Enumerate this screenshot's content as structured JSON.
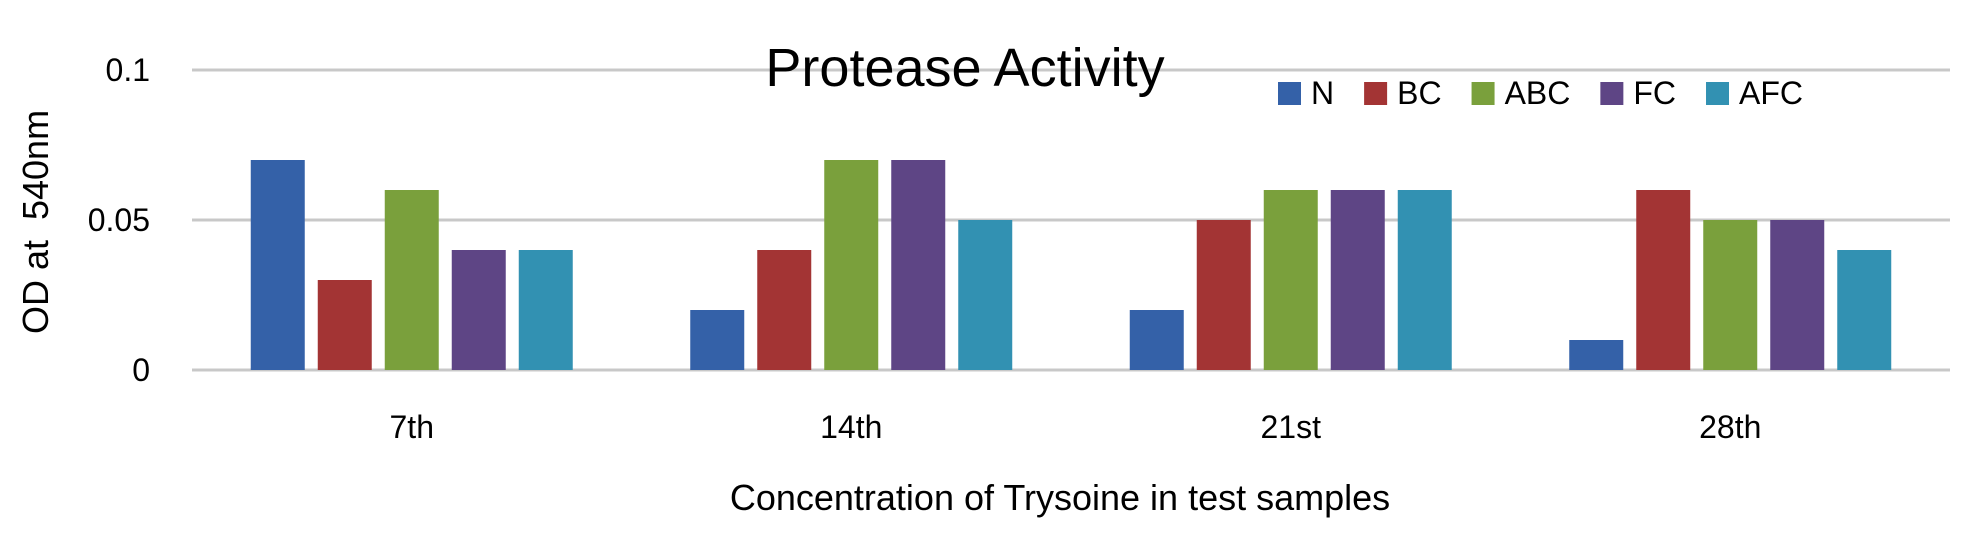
{
  "chart_data": {
    "type": "bar",
    "title": "Protease Activity",
    "xlabel": "Concentration of Trysoine in test samples",
    "ylabel": "OD at  540nm",
    "categories": [
      "7th",
      "14th",
      "21st",
      "28th"
    ],
    "ylim": [
      0,
      0.1
    ],
    "yticks": [
      0,
      0.05,
      0.1
    ],
    "ytick_labels": [
      "0",
      "0.05",
      "0.1"
    ],
    "grid": true,
    "legend_position": "top-right",
    "series": [
      {
        "name": "N",
        "color": "#3461a8",
        "values": [
          0.07,
          0.02,
          0.02,
          0.01
        ]
      },
      {
        "name": "BC",
        "color": "#a33434",
        "values": [
          0.03,
          0.04,
          0.05,
          0.06
        ]
      },
      {
        "name": "ABC",
        "color": "#7aa03c",
        "values": [
          0.06,
          0.07,
          0.06,
          0.05
        ]
      },
      {
        "name": "FC",
        "color": "#5e4585",
        "values": [
          0.04,
          0.07,
          0.06,
          0.05
        ]
      },
      {
        "name": "AFC",
        "color": "#3291b2",
        "values": [
          0.04,
          0.05,
          0.06,
          0.04
        ]
      }
    ]
  }
}
